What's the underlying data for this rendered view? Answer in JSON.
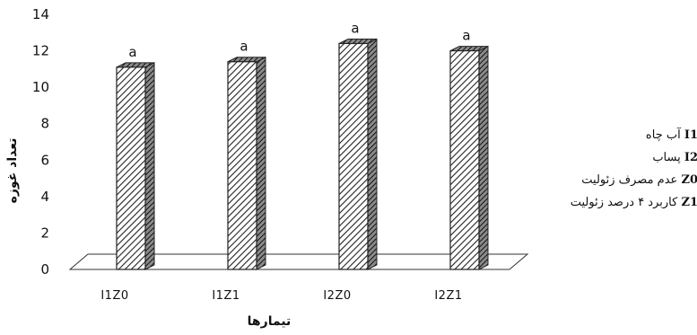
{
  "chart_data": {
    "type": "bar",
    "categories": [
      "I1Z0",
      "I1Z1",
      "I2Z0",
      "I2Z1"
    ],
    "values": [
      11.1,
      11.4,
      12.4,
      12.0
    ],
    "significance_letters": [
      "a",
      "a",
      "a",
      "a"
    ],
    "xlabel": "تیمارها",
    "ylabel": "تعداد غوزه",
    "ylim": [
      0,
      14
    ],
    "yticks": [
      0,
      2,
      4,
      6,
      8,
      10,
      12,
      14
    ],
    "grid": false,
    "legend_position": "right",
    "bar_fill": "diagonal-hatch",
    "colors": {
      "bar_face": "#ffffff",
      "hatch": "#222222",
      "bar_side": "#444444",
      "floor": "#ffffff"
    }
  },
  "legend": [
    {
      "code": "I1",
      "text": "آب چاه"
    },
    {
      "code": "I2",
      "text": "پساب"
    },
    {
      "code": "Z0",
      "text": "عدم مصرف زئولیت"
    },
    {
      "code": "Z1",
      "text": "کاربرد ۴ درصد زئولیت"
    }
  ]
}
